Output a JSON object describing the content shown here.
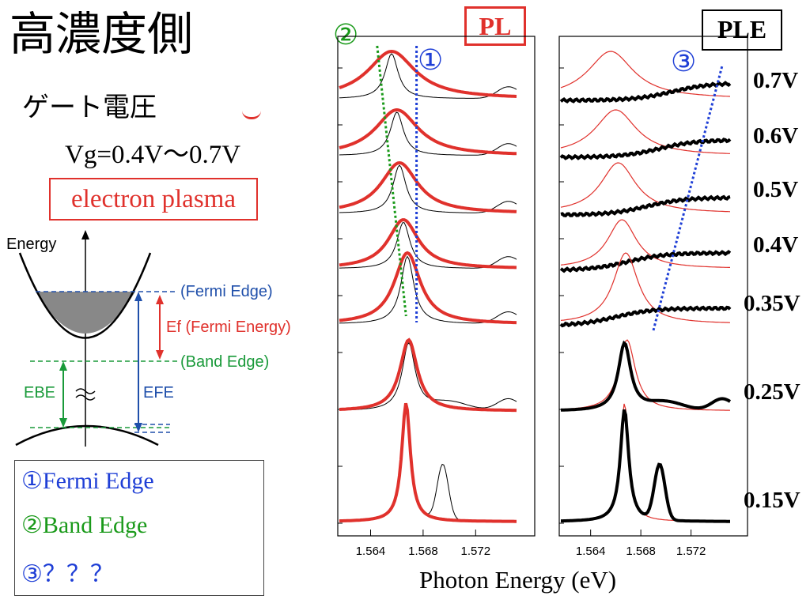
{
  "title": "高濃度側",
  "gate_voltage_label": "ゲート電圧",
  "vg_range": "Vg=0.4V～0.7V",
  "plasma_label": "electron plasma",
  "band_diagram": {
    "energy_label": "Energy",
    "fermi_edge": "(Fermi Edge)",
    "fermi_energy": "Ef (Fermi Energy)",
    "band_edge": "(Band Edge)",
    "e_be": "EBE",
    "e_fe": "EFE",
    "colors": {
      "fermi": "#1f4faa",
      "band": "#1a9a3a",
      "ef": "#e0312c"
    }
  },
  "legend": [
    {
      "text": "①Fermi Edge",
      "color": "#1f3fd6"
    },
    {
      "text": "②Band Edge",
      "color": "#1a9a1a"
    },
    {
      "text": "③？？？",
      "color": "#1f3fd6"
    }
  ],
  "panel_tags": {
    "pl": "PL",
    "ple": "PLE"
  },
  "markers": {
    "one": "①",
    "two": "②",
    "three": "③"
  },
  "voltage_labels": [
    "0.7V",
    "0.6V",
    "0.5V",
    "0.4V",
    "0.35V",
    "0.25V",
    "0.15V"
  ],
  "chart_data": [
    {
      "type": "line",
      "panel": "PL",
      "xlabel": "Photon Energy (eV)",
      "xlim": [
        1.5615,
        1.5765
      ],
      "xticks": [
        1.564,
        1.568,
        1.572
      ],
      "series": [
        {
          "name": "0.7V",
          "pl_peak": 1.5656,
          "pl_width": 0.0022
        },
        {
          "name": "0.6V",
          "pl_peak": 1.566,
          "pl_width": 0.002
        },
        {
          "name": "0.5V",
          "pl_peak": 1.5662,
          "pl_width": 0.0017
        },
        {
          "name": "0.4V",
          "pl_peak": 1.5665,
          "pl_width": 0.0014
        },
        {
          "name": "0.35V",
          "pl_peak": 1.5668,
          "pl_width": 0.0012
        },
        {
          "name": "0.25V",
          "pl_peak": 1.5669,
          "pl_width": 0.0008
        },
        {
          "name": "0.15V",
          "pl_peak": 1.5667,
          "pl_width": 0.0004
        }
      ],
      "band_edge_line": {
        "x": [
          1.5645,
          1.5667
        ]
      },
      "fermi_edge_line": {
        "x": [
          1.5675,
          1.5675
        ]
      },
      "colors": {
        "pl": "#e0312c",
        "ple": "#000000",
        "band_edge": "#1a9a1a",
        "fermi_edge": "#1f3fd6"
      }
    },
    {
      "type": "line",
      "panel": "PLE",
      "xlabel": "Photon Energy (eV)",
      "xlim": [
        1.5615,
        1.5765
      ],
      "xticks": [
        1.564,
        1.568,
        1.572
      ],
      "series": [
        {
          "name": "0.7V",
          "ple_edge": 1.5745
        },
        {
          "name": "0.6V",
          "ple_edge": 1.5735
        },
        {
          "name": "0.5V",
          "ple_edge": 1.5725
        },
        {
          "name": "0.4V",
          "ple_edge": 1.571
        },
        {
          "name": "0.35V",
          "ple_edge": 1.57
        },
        {
          "name": "0.25V",
          "ple_peak": 1.5667
        },
        {
          "name": "0.15V",
          "ple_peak": 1.5667
        }
      ],
      "third_line": {
        "x": [
          1.569,
          1.5745
        ]
      },
      "colors": {
        "pl": "#e0312c",
        "ple": "#000000",
        "third": "#1f3fd6"
      }
    }
  ]
}
